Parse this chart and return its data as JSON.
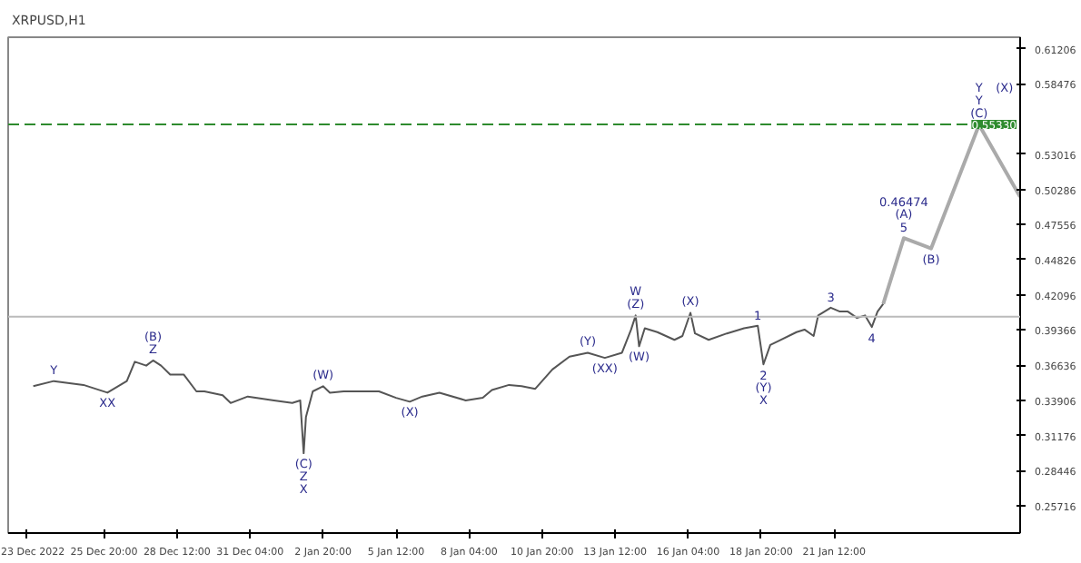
{
  "chart_data": {
    "type": "line",
    "title": "XRPUSD,H1",
    "xlim": [
      "2022-12-22T08:00",
      "2023-01-28T07:00"
    ],
    "ylim": [
      0.236,
      0.621
    ],
    "xticks": [
      {
        "value": "2022-12-23T00:00",
        "label": "23 Dec 2022"
      },
      {
        "value": "2022-12-25T20:00",
        "label": "25 Dec 20:00"
      },
      {
        "value": "2022-12-28T12:00",
        "label": "28 Dec 12:00"
      },
      {
        "value": "2022-12-31T04:00",
        "label": "31 Dec 04:00"
      },
      {
        "value": "2023-01-02T20:00",
        "label": "2 Jan 20:00"
      },
      {
        "value": "2023-01-05T12:00",
        "label": "5 Jan 12:00"
      },
      {
        "value": "2023-01-08T04:00",
        "label": "8 Jan 04:00"
      },
      {
        "value": "2023-01-10T20:00",
        "label": "10 Jan 20:00"
      },
      {
        "value": "2023-01-13T12:00",
        "label": "13 Jan 12:00"
      },
      {
        "value": "2023-01-16T04:00",
        "label": "16 Jan 04:00"
      },
      {
        "value": "2023-01-18T20:00",
        "label": "18 Jan 20:00"
      },
      {
        "value": "2023-01-21T12:00",
        "label": "21 Jan 12:00"
      }
    ],
    "yticks": [
      {
        "value": 0.25716,
        "label": "0.25716"
      },
      {
        "value": 0.28446,
        "label": "0.28446"
      },
      {
        "value": 0.31176,
        "label": "0.31176"
      },
      {
        "value": 0.33906,
        "label": "0.33906"
      },
      {
        "value": 0.36636,
        "label": "0.36636"
      },
      {
        "value": 0.39366,
        "label": "0.39366"
      },
      {
        "value": 0.42096,
        "label": "0.42096"
      },
      {
        "value": 0.44826,
        "label": "0.44826"
      },
      {
        "value": 0.47556,
        "label": "0.47556"
      },
      {
        "value": 0.50286,
        "label": "0.50286"
      },
      {
        "value": 0.53016,
        "label": "0.53016"
      },
      {
        "value": 0.58476,
        "label": "0.58476"
      },
      {
        "value": 0.61206,
        "label": "0.61206"
      }
    ],
    "grid": false,
    "series": [
      {
        "color": "#555555",
        "x": [
          "2022-12-23T06:00",
          "2022-12-24T00:00",
          "2022-12-25T02:00",
          "2022-12-25T23:00",
          "2022-12-26T16:00",
          "2022-12-26T23:00",
          "2022-12-27T09:00",
          "2022-12-27T15:00",
          "2022-12-27T22:00",
          "2022-12-28T06:00",
          "2022-12-28T18:00",
          "2022-12-29T05:00",
          "2022-12-29T12:00",
          "2022-12-30T04:00",
          "2022-12-30T11:00",
          "2022-12-31T02:00",
          "2023-01-01T01:00",
          "2023-01-01T17:00",
          "2023-01-02T00:00",
          "2023-01-02T03:00",
          "2023-01-02T05:00",
          "2023-01-02T11:00",
          "2023-01-02T20:00",
          "2023-01-03T02:00",
          "2023-01-03T14:00",
          "2023-01-04T21:00",
          "2023-01-05T12:00",
          "2023-01-06T00:00",
          "2023-01-06T11:00",
          "2023-01-07T02:00",
          "2023-01-08T01:00",
          "2023-01-08T16:00",
          "2023-01-09T00:00",
          "2023-01-09T15:00",
          "2023-01-10T02:00",
          "2023-01-10T14:00",
          "2023-01-11T05:00",
          "2023-01-11T20:00",
          "2023-01-12T12:00",
          "2023-01-13T03:00",
          "2023-01-13T18:00",
          "2023-01-14T02:00",
          "2023-01-14T06:00",
          "2023-01-14T09:00",
          "2023-01-14T14:00",
          "2023-01-15T01:00",
          "2023-01-15T16:00",
          "2023-01-15T23:00",
          "2023-01-16T06:00",
          "2023-01-16T10:00",
          "2023-01-16T22:00",
          "2023-01-17T14:00",
          "2023-01-18T05:00",
          "2023-01-18T17:00",
          "2023-01-18T22:00",
          "2023-01-19T04:00",
          "2023-01-19T11:00",
          "2023-01-20T03:00",
          "2023-01-20T10:00",
          "2023-01-20T18:00",
          "2023-01-20T22:00",
          "2023-01-21T09:00",
          "2023-01-21T17:00",
          "2023-01-22T00:00",
          "2023-01-22T08:00",
          "2023-01-22T15:00",
          "2023-01-22T21:00",
          "2023-01-23T02:00",
          "2023-01-23T07:00"
        ],
        "values": [
          0.35,
          0.354,
          0.351,
          0.345,
          0.354,
          0.369,
          0.366,
          0.37,
          0.366,
          0.359,
          0.359,
          0.346,
          0.346,
          0.343,
          0.337,
          0.342,
          0.339,
          0.337,
          0.339,
          0.298,
          0.326,
          0.346,
          0.35,
          0.345,
          0.346,
          0.346,
          0.341,
          0.338,
          0.342,
          0.345,
          0.339,
          0.341,
          0.347,
          0.351,
          0.35,
          0.348,
          0.363,
          0.373,
          0.376,
          0.372,
          0.376,
          0.394,
          0.405,
          0.381,
          0.395,
          0.392,
          0.386,
          0.389,
          0.407,
          0.391,
          0.386,
          0.391,
          0.395,
          0.397,
          0.367,
          0.382,
          0.385,
          0.392,
          0.394,
          0.389,
          0.405,
          0.411,
          0.408,
          0.408,
          0.403,
          0.405,
          0.396,
          0.408,
          0.414
        ]
      },
      {
        "color": "#aaaaaa",
        "x": [
          "2023-01-23T07:00",
          "2023-01-24T01:00",
          "2023-01-25T01:00",
          "2023-01-26T19:00",
          "2023-01-28T07:00"
        ],
        "values": [
          0.414,
          0.465,
          0.457,
          0.553,
          0.497
        ]
      }
    ],
    "ref_lines": [
      {
        "axis": "y",
        "value": 0.5533,
        "label": "0.55330",
        "color": "#2e8b2e",
        "line_style": "dashed"
      },
      {
        "axis": "y",
        "value": 0.404,
        "label": null,
        "color": "#bbbbbb",
        "line_style": "solid"
      }
    ],
    "annotations": [
      {
        "text": "Y",
        "x": "2022-12-24T00:00",
        "y": 0.354
      },
      {
        "text": "XX",
        "x": "2022-12-25T23:00",
        "y": 0.345
      },
      {
        "text": "Z",
        "x": "2022-12-27T15:00",
        "y": 0.37
      },
      {
        "text": "(B)",
        "x": "2022-12-27T15:00",
        "y": 0.37
      },
      {
        "text": "(C)",
        "x": "2023-01-02T03:00",
        "y": 0.298
      },
      {
        "text": "Z",
        "x": "2023-01-02T03:00",
        "y": 0.298
      },
      {
        "text": "X",
        "x": "2023-01-02T03:00",
        "y": 0.298
      },
      {
        "text": "(W)",
        "x": "2023-01-02T20:00",
        "y": 0.35
      },
      {
        "text": "(X)",
        "x": "2023-01-06T00:00",
        "y": 0.338
      },
      {
        "text": "(Y)",
        "x": "2023-01-12T12:00",
        "y": 0.376
      },
      {
        "text": "(XX)",
        "x": "2023-01-13T03:00",
        "y": 0.372
      },
      {
        "text": "(Z)",
        "x": "2023-01-14T06:00",
        "y": 0.405
      },
      {
        "text": "W",
        "x": "2023-01-14T06:00",
        "y": 0.405
      },
      {
        "text": "(W)",
        "x": "2023-01-14T09:00",
        "y": 0.381
      },
      {
        "text": "(X)",
        "x": "2023-01-16T06:00",
        "y": 0.407
      },
      {
        "text": "1",
        "x": "2023-01-18T17:00",
        "y": 0.397
      },
      {
        "text": "2",
        "x": "2023-01-18T22:00",
        "y": 0.367
      },
      {
        "text": "(Y)",
        "x": "2023-01-18T22:00",
        "y": 0.367
      },
      {
        "text": "X",
        "x": "2023-01-18T22:00",
        "y": 0.367
      },
      {
        "text": "3",
        "x": "2023-01-21T09:00",
        "y": 0.411
      },
      {
        "text": "4",
        "x": "2023-01-22T21:00",
        "y": 0.396
      },
      {
        "text": "5",
        "x": "2023-01-24T01:00",
        "y": 0.465
      },
      {
        "text": "(A)",
        "x": "2023-01-24T01:00",
        "y": 0.465
      },
      {
        "text": "0.46474",
        "x": "2023-01-24T01:00",
        "y": 0.465
      },
      {
        "text": "(B)",
        "x": "2023-01-25T01:00",
        "y": 0.457
      },
      {
        "text": "(C)",
        "x": "2023-01-26T19:00",
        "y": 0.553
      },
      {
        "text": "Y",
        "x": "2023-01-26T19:00",
        "y": 0.553
      },
      {
        "text": "Y",
        "x": "2023-01-26T19:00",
        "y": 0.553
      },
      {
        "text": "(X)",
        "x": "2023-01-26T19:00",
        "y": 0.553
      }
    ]
  }
}
